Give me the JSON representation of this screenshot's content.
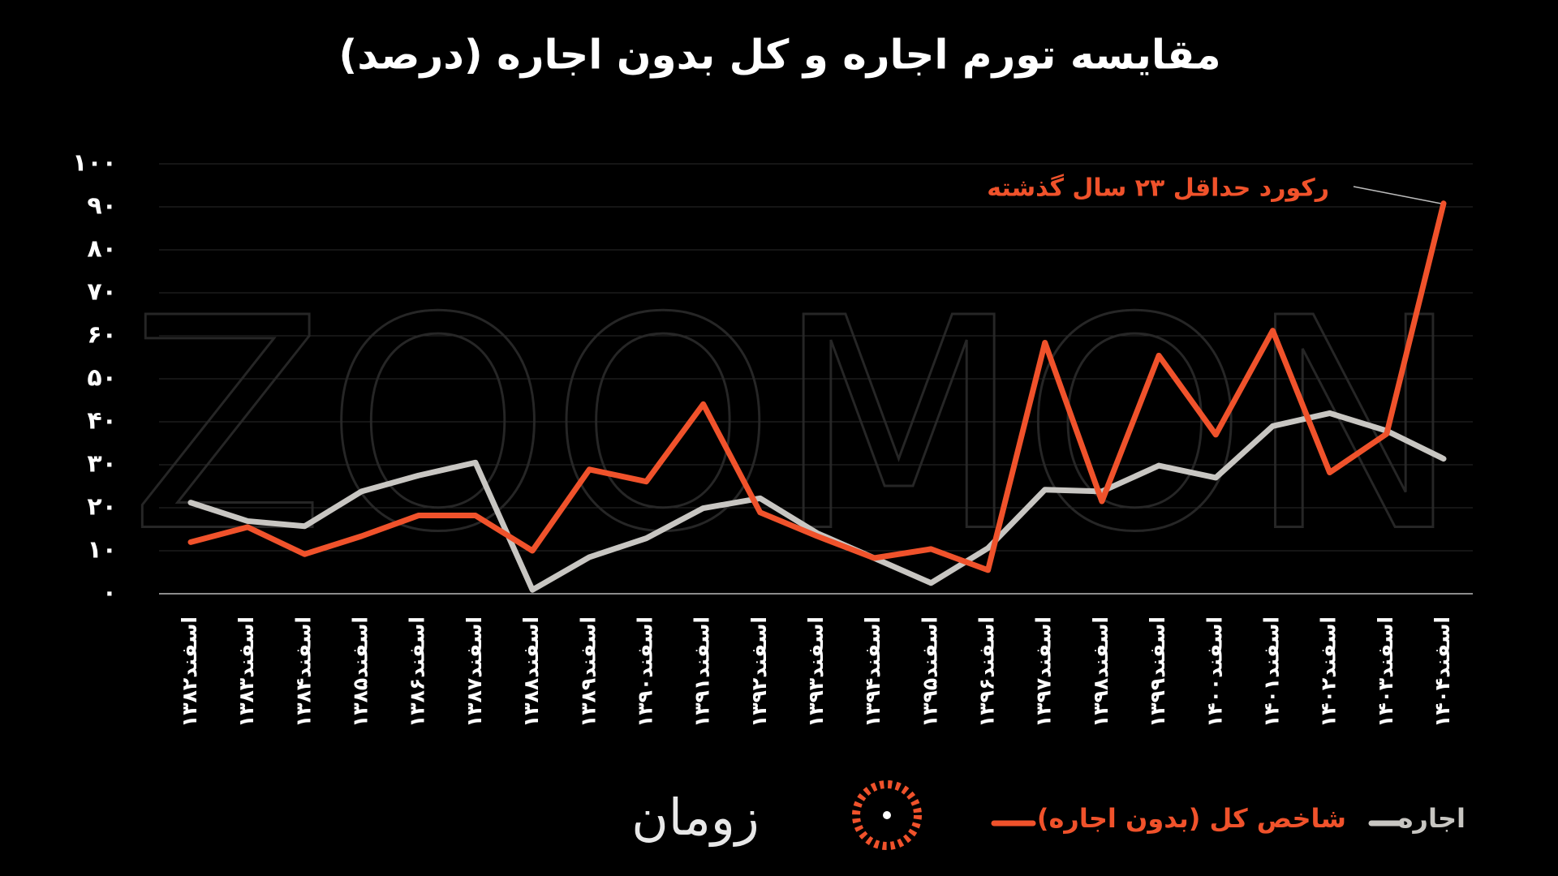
{
  "chart_data": {
    "type": "line",
    "title": "مقایسه تورم اجاره و کل بدون اجاره (درصد)",
    "watermark": "ZOOMON",
    "brand": "زومان",
    "annotation": "رکورد حداقل ۲۳ سال گذشته",
    "categories": [
      "اسفند۱۳۸۲",
      "اسفند۱۳۸۳",
      "اسفند۱۳۸۴",
      "اسفند۱۳۸۵",
      "اسفند۱۳۸۶",
      "اسفند۱۳۸۷",
      "اسفند۱۳۸۸",
      "اسفند۱۳۸۹",
      "اسفند۱۳۹۰",
      "اسفند۱۳۹۱",
      "اسفند۱۳۹۲",
      "اسفند۱۳۹۳",
      "اسفند۱۳۹۴",
      "اسفند۱۳۹۵",
      "اسفند۱۳۹۶",
      "اسفند۱۳۹۷",
      "اسفند۱۳۹۸",
      "اسفند۱۳۹۹",
      "اسفند۱۴۰۰",
      "اسفند۱۴۰۱",
      "اسفند۱۴۰۲",
      "اسفند۱۴۰۳",
      "اسفند۱۴۰۴"
    ],
    "series": [
      {
        "name": "اجاره",
        "color": "#c8c6c2",
        "values": [
          21.2,
          16.9,
          15.7,
          23.8,
          27.5,
          30.5,
          0.9,
          8.5,
          12.9,
          19.9,
          22.2,
          14.1,
          8.3,
          2.5,
          10.6,
          24.2,
          23.8,
          29.8,
          27,
          39,
          42,
          37.9,
          31.4
        ]
      },
      {
        "name": "شاخص کل (بدون اجاره)",
        "color": "#f0522b",
        "values": [
          12,
          15.5,
          9.2,
          13.4,
          18.2,
          18.2,
          10,
          28.9,
          26.1,
          44.1,
          18.9,
          13.4,
          8.3,
          10.4,
          5.5,
          58.4,
          21.5,
          55.4,
          37,
          61.2,
          28.2,
          37.2,
          90.8
        ]
      }
    ],
    "ylim": [
      0,
      100
    ],
    "yticks": [
      {
        "value": 0,
        "label": "۰"
      },
      {
        "value": 10,
        "label": "۱۰"
      },
      {
        "value": 20,
        "label": "۲۰"
      },
      {
        "value": 30,
        "label": "۳۰"
      },
      {
        "value": 40,
        "label": "۴۰"
      },
      {
        "value": 50,
        "label": "۵۰"
      },
      {
        "value": 60,
        "label": "۶۰"
      },
      {
        "value": 70,
        "label": "۷۰"
      },
      {
        "value": 80,
        "label": "۸۰"
      },
      {
        "value": 90,
        "label": "۹۰"
      },
      {
        "value": 100,
        "label": "۱۰۰"
      }
    ],
    "grid": true
  }
}
